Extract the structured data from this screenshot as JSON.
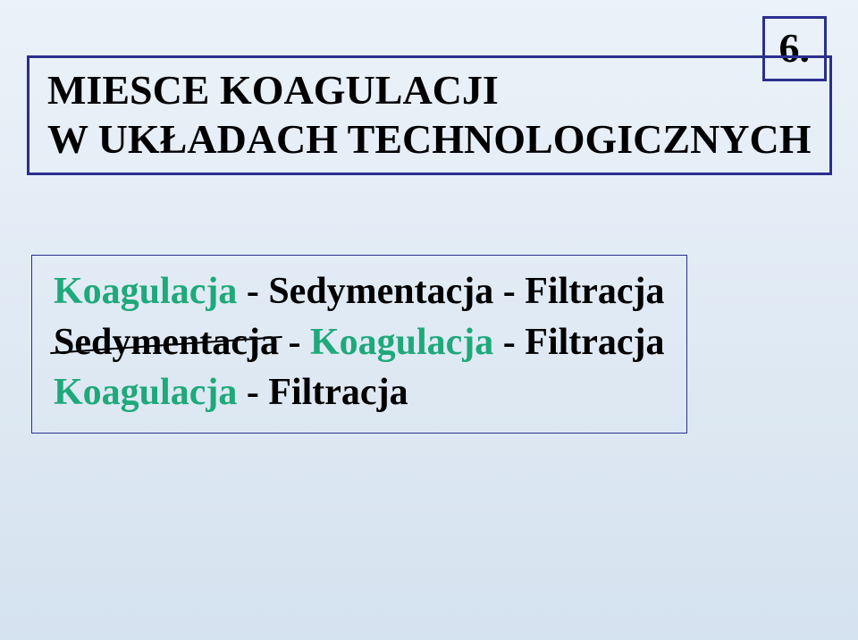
{
  "page": {
    "number": "6.",
    "title_line1": "MIESCE KOAGULACJI",
    "title_line2": "W UKŁADACH TECHNOLOGICZNYCH"
  },
  "content": {
    "line1": {
      "segments": [
        {
          "text": "Koagulacja",
          "color": "#1fa97a"
        },
        {
          "text": " - Sedymentacja - Filtracja",
          "color": "#000000"
        }
      ]
    },
    "line2": {
      "strike_text": "Sedymentacja",
      "segments": [
        {
          "text": " - ",
          "color": "#000000"
        },
        {
          "text": "Koagulacja ",
          "color": "#1fa97a"
        },
        {
          "text": " - Filtracja",
          "color": "#000000"
        }
      ]
    },
    "line3": {
      "segments": [
        {
          "text": "Koagulacja",
          "color": "#1fa97a"
        },
        {
          "text": " - Filtracja",
          "color": "#000000"
        }
      ]
    }
  },
  "colors": {
    "border": "#2a2e8f",
    "accent": "#1fa97a",
    "text": "#000000",
    "bg_top": "#ebf2f9",
    "bg_bottom": "#d5e2ef"
  }
}
